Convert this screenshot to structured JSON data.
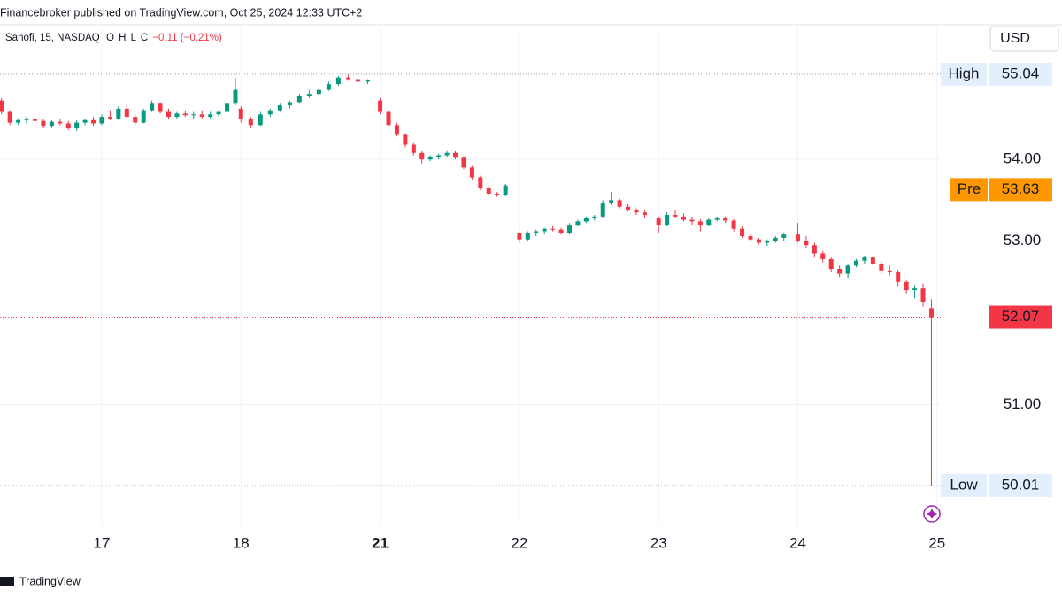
{
  "header": {
    "publisher": "Financebroker published on TradingView.com, Oct 25, 2024 12:33 UTC+2",
    "symbol": "Sanofi, 15, NASDAQ",
    "o_label": "O",
    "h_label": "H",
    "l_label": "L",
    "c_label": "C",
    "change": "−0.11 (−0.21%)"
  },
  "currency": "USD",
  "footer": "TradingView",
  "chart_data": {
    "type": "candlestick",
    "up_color": "#089981",
    "down_color": "#f23645",
    "xlim": [
      -0.731,
      6.027
    ],
    "ylim": [
      49.512,
      55.646
    ],
    "xticks": [
      {
        "value": 0,
        "label": "17"
      },
      {
        "value": 1,
        "label": "18"
      },
      {
        "value": 2,
        "label": "21"
      },
      {
        "value": 3,
        "label": "22"
      },
      {
        "value": 4,
        "label": "23"
      },
      {
        "value": 5,
        "label": "24"
      },
      {
        "value": 6,
        "label": "25"
      }
    ],
    "yticks": [
      {
        "value": 51,
        "label": "51.00"
      },
      {
        "value": 53,
        "label": "53.00"
      },
      {
        "value": 54,
        "label": "54.00"
      }
    ],
    "grid": true,
    "high_line": {
      "label": "High",
      "value": 55.04
    },
    "low_line": {
      "label": "Low",
      "value": 50.01
    },
    "pre_line": {
      "label": "Pre",
      "value": 53.63,
      "color": "#ff9800"
    },
    "last_line": {
      "value": 52.07,
      "color": "#f23645"
    },
    "x": [
      -0.72,
      -0.66,
      -0.6,
      -0.54,
      -0.48,
      -0.42,
      -0.36,
      -0.3,
      -0.24,
      -0.18,
      -0.12,
      -0.06,
      0,
      0.06,
      0.12,
      0.18,
      0.24,
      0.3,
      0.36,
      0.42,
      0.48,
      0.54,
      0.6,
      0.66,
      0.72,
      0.78,
      0.84,
      0.9,
      0.96,
      1,
      1.07,
      1.14,
      1.21,
      1.28,
      1.35,
      1.42,
      1.49,
      1.56,
      1.63,
      1.7,
      1.77,
      1.84,
      1.91,
      2,
      2.06,
      2.12,
      2.18,
      2.24,
      2.3,
      2.36,
      2.42,
      2.48,
      2.54,
      2.6,
      2.66,
      2.72,
      2.78,
      2.84,
      2.9,
      3,
      3.06,
      3.12,
      3.18,
      3.24,
      3.3,
      3.36,
      3.42,
      3.48,
      3.54,
      3.6,
      3.66,
      3.72,
      3.78,
      3.84,
      3.9,
      4,
      4.06,
      4.12,
      4.18,
      4.24,
      4.3,
      4.36,
      4.42,
      4.48,
      4.54,
      4.6,
      4.66,
      4.72,
      4.78,
      4.84,
      4.9,
      5,
      5.06,
      5.12,
      5.18,
      5.24,
      5.3,
      5.36,
      5.42,
      5.48,
      5.54,
      5.6,
      5.66,
      5.72,
      5.78,
      5.84,
      5.9,
      5.96
    ],
    "open": [
      54.72,
      54.58,
      54.45,
      54.48,
      54.5,
      54.47,
      54.4,
      54.46,
      54.44,
      54.38,
      54.45,
      54.48,
      54.44,
      54.52,
      54.5,
      54.62,
      54.52,
      54.45,
      54.6,
      54.68,
      54.58,
      54.52,
      54.56,
      54.54,
      54.55,
      54.52,
      54.55,
      54.58,
      54.68,
      54.62,
      54.5,
      54.42,
      54.55,
      54.6,
      54.66,
      54.7,
      54.78,
      54.8,
      54.85,
      54.92,
      55.0,
      54.98,
      54.95,
      54.72,
      54.58,
      54.42,
      54.3,
      54.18,
      54.08,
      54.0,
      54.03,
      54.05,
      54.08,
      54.02,
      53.9,
      53.78,
      53.65,
      53.58,
      53.56,
      53.1,
      53.02,
      53.1,
      53.12,
      53.15,
      53.14,
      53.1,
      53.2,
      53.24,
      53.28,
      53.3,
      53.46,
      53.5,
      53.42,
      53.38,
      53.35,
      53.28,
      53.2,
      53.32,
      53.3,
      53.26,
      53.24,
      53.2,
      53.26,
      53.28,
      53.25,
      53.15,
      53.06,
      53.02,
      52.98,
      53.0,
      53.04,
      53.08,
      53.0,
      52.95,
      52.85,
      52.78,
      52.66,
      52.6,
      52.7,
      52.76,
      52.8,
      52.72,
      52.64,
      52.62,
      52.5,
      52.4,
      52.42,
      52.18
    ],
    "high": [
      54.75,
      54.6,
      54.5,
      54.52,
      54.53,
      54.5,
      54.48,
      54.5,
      54.47,
      54.48,
      54.5,
      54.52,
      54.55,
      54.6,
      54.65,
      54.68,
      54.55,
      54.62,
      54.72,
      54.7,
      54.62,
      54.58,
      54.6,
      54.58,
      54.6,
      54.58,
      54.6,
      54.7,
      55.0,
      54.65,
      54.52,
      54.58,
      54.62,
      54.68,
      54.72,
      54.8,
      54.85,
      54.88,
      54.95,
      55.02,
      55.04,
      55.0,
      54.98,
      54.75,
      54.6,
      54.45,
      54.32,
      54.2,
      54.1,
      54.05,
      54.07,
      54.1,
      54.1,
      54.04,
      53.92,
      53.8,
      53.68,
      53.6,
      53.7,
      53.12,
      53.12,
      53.14,
      53.16,
      53.18,
      53.16,
      53.22,
      53.26,
      53.3,
      53.32,
      53.5,
      53.6,
      53.52,
      53.45,
      53.4,
      53.38,
      53.3,
      53.35,
      53.38,
      53.34,
      53.3,
      53.27,
      53.28,
      53.3,
      53.3,
      53.27,
      53.18,
      53.08,
      53.04,
      53.02,
      53.06,
      53.1,
      53.22,
      53.06,
      52.98,
      52.88,
      52.8,
      52.7,
      52.72,
      52.78,
      52.82,
      52.82,
      52.75,
      52.7,
      52.65,
      52.52,
      52.46,
      52.48,
      52.29
    ],
    "low": [
      54.55,
      54.42,
      54.42,
      54.44,
      54.46,
      54.38,
      54.38,
      54.42,
      54.36,
      54.35,
      54.42,
      54.4,
      54.42,
      54.48,
      54.48,
      54.5,
      54.42,
      54.44,
      54.58,
      54.56,
      54.5,
      54.5,
      54.52,
      54.5,
      54.5,
      54.5,
      54.52,
      54.56,
      54.66,
      54.45,
      54.38,
      54.4,
      54.52,
      54.58,
      54.62,
      54.68,
      54.75,
      54.78,
      54.84,
      54.9,
      54.96,
      54.94,
      54.92,
      54.55,
      54.4,
      54.28,
      54.15,
      54.05,
      53.95,
      53.98,
      54.0,
      54.02,
      54.0,
      53.88,
      53.75,
      53.62,
      53.55,
      53.54,
      53.55,
      52.98,
      53.0,
      53.06,
      53.08,
      53.12,
      53.08,
      53.08,
      53.18,
      53.22,
      53.25,
      53.28,
      53.44,
      53.4,
      53.36,
      53.32,
      53.28,
      53.1,
      53.18,
      53.28,
      53.24,
      53.2,
      53.12,
      53.18,
      53.24,
      53.22,
      53.12,
      53.04,
      53.0,
      52.96,
      52.94,
      52.98,
      53.0,
      52.98,
      52.92,
      52.8,
      52.74,
      52.62,
      52.56,
      52.55,
      52.68,
      52.72,
      52.7,
      52.6,
      52.58,
      52.45,
      52.36,
      52.3,
      52.2,
      50.01
    ],
    "close": [
      54.58,
      54.45,
      54.48,
      54.5,
      54.47,
      54.4,
      54.46,
      54.44,
      54.38,
      54.45,
      54.48,
      54.44,
      54.52,
      54.5,
      54.62,
      54.52,
      54.45,
      54.6,
      54.68,
      54.58,
      54.52,
      54.56,
      54.54,
      54.55,
      54.52,
      54.55,
      54.58,
      54.68,
      54.85,
      54.5,
      54.42,
      54.55,
      54.6,
      54.66,
      54.7,
      54.78,
      54.8,
      54.85,
      54.92,
      55.0,
      54.98,
      54.95,
      54.97,
      54.58,
      54.42,
      54.3,
      54.18,
      54.08,
      54.0,
      54.03,
      54.05,
      54.08,
      54.02,
      53.9,
      53.78,
      53.65,
      53.58,
      53.56,
      53.68,
      53.02,
      53.1,
      53.12,
      53.15,
      53.14,
      53.1,
      53.2,
      53.24,
      53.28,
      53.3,
      53.46,
      53.5,
      53.42,
      53.38,
      53.35,
      53.32,
      53.2,
      53.32,
      53.3,
      53.26,
      53.24,
      53.2,
      53.26,
      53.28,
      53.25,
      53.15,
      53.06,
      53.02,
      52.98,
      53.0,
      53.04,
      53.08,
      53.0,
      52.95,
      52.85,
      52.78,
      52.66,
      52.6,
      52.7,
      52.76,
      52.8,
      52.72,
      52.64,
      52.62,
      52.5,
      52.4,
      52.42,
      52.25,
      52.07
    ]
  }
}
